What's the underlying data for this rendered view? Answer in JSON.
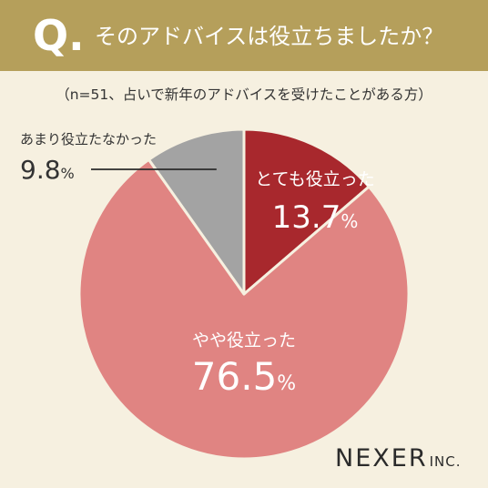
{
  "header": {
    "q_mark": "Q.",
    "question": "そのアドバイスは役立ちましたか？"
  },
  "note": "（n=51、占いで新年のアドバイスを受けたことがある方）",
  "brand": {
    "name": "NEXER",
    "suffix": "INC."
  },
  "colors": {
    "header_bg": "#b59f5b",
    "background": "#f6f0e0",
    "very_helpful": "#a8282d",
    "somewhat_helpful": "#e08482",
    "not_very_helpful": "#a3a3a3"
  },
  "chart_data": {
    "type": "pie",
    "slices": [
      {
        "label": "とても役立った",
        "value": 13.7,
        "unit": "%",
        "color": "#a8282d",
        "label_color": "#ffffff"
      },
      {
        "label": "やや役立った",
        "value": 76.5,
        "unit": "%",
        "color": "#e08482",
        "label_color": "#ffffff"
      },
      {
        "label": "あまり役立たなかった",
        "value": 9.8,
        "unit": "%",
        "color": "#a3a3a3",
        "label_color": "#333333"
      }
    ]
  }
}
